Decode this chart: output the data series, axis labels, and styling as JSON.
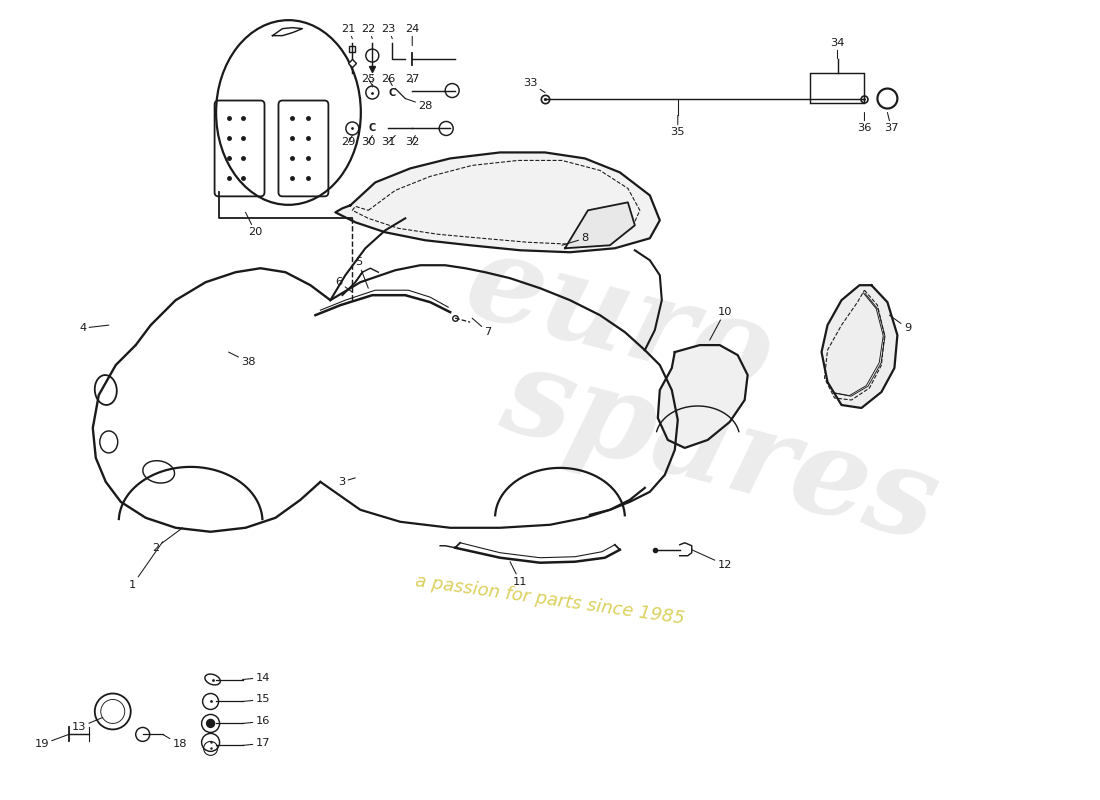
{
  "bg_color": "#ffffff",
  "line_color": "#1a1a1a",
  "lw": 1.3,
  "watermark_euro_color": "#c8c8c8",
  "watermark_spares_color": "#c8c8c8",
  "watermark_tagline_color": "#d4c840",
  "figsize": [
    11.0,
    8.0
  ],
  "dpi": 100,
  "xlim": [
    0,
    11
  ],
  "ylim": [
    0,
    8
  ]
}
